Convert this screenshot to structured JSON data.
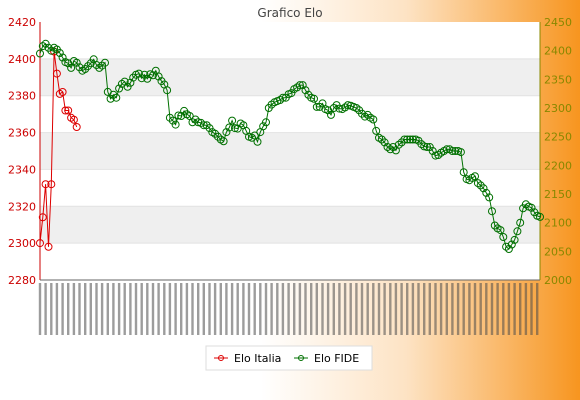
{
  "chart_data": {
    "type": "line",
    "title": "Grafico Elo",
    "ylim_left": [
      2280,
      2420
    ],
    "yticks_left": [
      "2280",
      "2300",
      "2320",
      "2340",
      "2360",
      "2380",
      "2400",
      "2420"
    ],
    "ylim_right": [
      2000,
      2450
    ],
    "yticks_right": [
      "2000",
      "2050",
      "2100",
      "2150",
      "2200",
      "2250",
      "2300",
      "2350",
      "2400",
      "2450"
    ],
    "legend_placement": "bottom-center",
    "grid": "horizontal bands",
    "series": [
      {
        "name": "Elo Italia",
        "axis": "left",
        "color": "#dd0000",
        "values": [
          2300,
          2314,
          2332,
          2298,
          2332,
          2404,
          2392,
          2381,
          2382,
          2372,
          2372,
          2368,
          2367,
          2363
        ]
      },
      {
        "name": "Elo FIDE",
        "axis": "right",
        "color": "#007000",
        "values": [
          2395,
          2408,
          2412,
          2405,
          2400,
          2405,
          2402,
          2396,
          2388,
          2380,
          2378,
          2370,
          2382,
          2379,
          2371,
          2365,
          2368,
          2373,
          2378,
          2385,
          2375,
          2370,
          2374,
          2379,
          2328,
          2316,
          2323,
          2318,
          2334,
          2342,
          2346,
          2337,
          2344,
          2353,
          2358,
          2360,
          2352,
          2358,
          2351,
          2359,
          2357,
          2365,
          2355,
          2347,
          2341,
          2331,
          2283,
          2278,
          2271,
          2287,
          2286,
          2295,
          2289,
          2286,
          2275,
          2280,
          2275,
          2274,
          2270,
          2270,
          2265,
          2258,
          2255,
          2250,
          2245,
          2242,
          2258,
          2266,
          2278,
          2265,
          2264,
          2273,
          2270,
          2260,
          2250,
          2248,
          2252,
          2241,
          2258,
          2268,
          2275,
          2300,
          2306,
          2310,
          2312,
          2314,
          2318,
          2318,
          2324,
          2326,
          2333,
          2336,
          2340,
          2340,
          2331,
          2323,
          2318,
          2316,
          2302,
          2302,
          2308,
          2298,
          2296,
          2288,
          2300,
          2305,
          2299,
          2298,
          2301,
          2305,
          2304,
          2302,
          2300,
          2296,
          2290,
          2285,
          2288,
          2283,
          2280,
          2260,
          2248,
          2245,
          2240,
          2232,
          2228,
          2232,
          2226,
          2236,
          2240,
          2245,
          2245,
          2245,
          2245,
          2245,
          2243,
          2237,
          2233,
          2232,
          2232,
          2225,
          2217,
          2218,
          2222,
          2225,
          2228,
          2228,
          2225,
          2225,
          2225,
          2223,
          2188,
          2176,
          2174,
          2178,
          2181,
          2169,
          2165,
          2160,
          2152,
          2144,
          2120,
          2095,
          2090,
          2087,
          2075,
          2058,
          2054,
          2062,
          2070,
          2085,
          2100,
          2125,
          2132,
          2128,
          2126,
          2118,
          2112,
          2110
        ]
      }
    ]
  }
}
